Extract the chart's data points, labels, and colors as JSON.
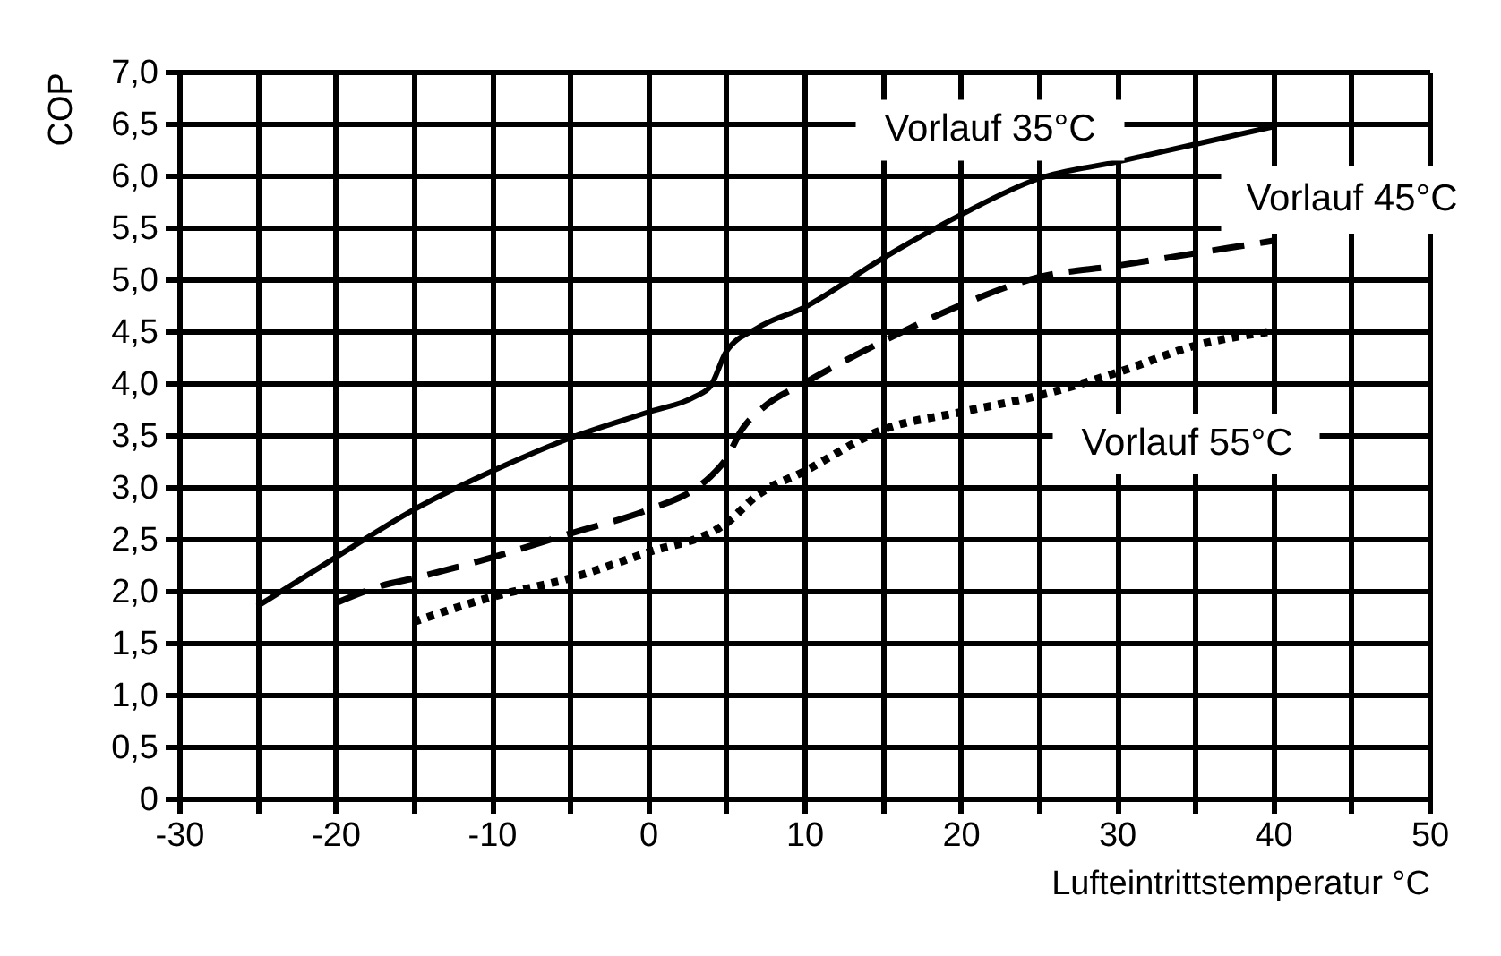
{
  "chart_data": {
    "type": "line",
    "xlabel": "Lufteintrittstemperatur °C",
    "ylabel": "COP",
    "xlim": [
      -30,
      50
    ],
    "ylim": [
      0,
      7
    ],
    "xticks": [
      -30,
      {
        "value": -25,
        "label": null
      },
      -20,
      {
        "value": -15,
        "label": null
      },
      -10,
      {
        "value": -5,
        "label": null
      },
      0,
      {
        "value": 5,
        "label": null
      },
      10,
      {
        "value": 15,
        "label": null
      },
      20,
      {
        "value": 25,
        "label": null
      },
      30,
      {
        "value": 35,
        "label": null
      },
      40,
      {
        "value": 45,
        "label": null
      },
      50
    ],
    "yticks": [
      0,
      {
        "value": 0.5,
        "label": "0,5"
      },
      {
        "value": 1,
        "label": "1,0"
      },
      {
        "value": 1.5,
        "label": "1,5"
      },
      {
        "value": 2,
        "label": "2,0"
      },
      {
        "value": 2.5,
        "label": "2,5"
      },
      {
        "value": 3,
        "label": "3,0"
      },
      {
        "value": 3.5,
        "label": "3,5"
      },
      {
        "value": 4,
        "label": "4,0"
      },
      {
        "value": 4.5,
        "label": "4,5"
      },
      {
        "value": 5,
        "label": "5,0"
      },
      {
        "value": 5.5,
        "label": "5,5"
      },
      {
        "value": 6,
        "label": "6,0"
      },
      {
        "value": 6.5,
        "label": "6,5"
      },
      {
        "value": 7,
        "label": "7,0"
      }
    ],
    "grid": true,
    "legend": false,
    "series": [
      {
        "name": "Vorlauf 35°C",
        "color": "#000000",
        "line_style": "solid",
        "x": [
          -25,
          -20,
          -15,
          -10,
          -5,
          0,
          3,
          4,
          5,
          7,
          10,
          15,
          20,
          25,
          30,
          35,
          40
        ],
        "values": [
          1.85,
          2.32,
          2.78,
          3.15,
          3.47,
          3.72,
          3.87,
          3.97,
          4.3,
          4.53,
          4.73,
          5.2,
          5.62,
          5.97,
          6.13,
          6.3,
          6.47
        ]
      },
      {
        "name": "Vorlauf 45°C",
        "color": "#000000",
        "line_style": "dashed",
        "x": [
          -20,
          -17,
          -15,
          -10,
          -5,
          0,
          3,
          4,
          5,
          6,
          7.5,
          10,
          15,
          20,
          25,
          30,
          35,
          40
        ],
        "values": [
          1.88,
          2.05,
          2.12,
          2.32,
          2.55,
          2.78,
          2.98,
          3.1,
          3.27,
          3.55,
          3.78,
          4.0,
          4.4,
          4.75,
          5.02,
          5.13,
          5.25,
          5.37
        ]
      },
      {
        "name": "Vorlauf 55°C",
        "color": "#000000",
        "line_style": "dotted",
        "x": [
          -15,
          -10,
          -5,
          0,
          4.5,
          5,
          7,
          10,
          15,
          20,
          25,
          30,
          35,
          40
        ],
        "values": [
          1.7,
          1.94,
          2.12,
          2.37,
          2.6,
          2.65,
          2.92,
          3.15,
          3.55,
          3.72,
          3.88,
          4.1,
          4.36,
          4.5
        ]
      }
    ]
  }
}
